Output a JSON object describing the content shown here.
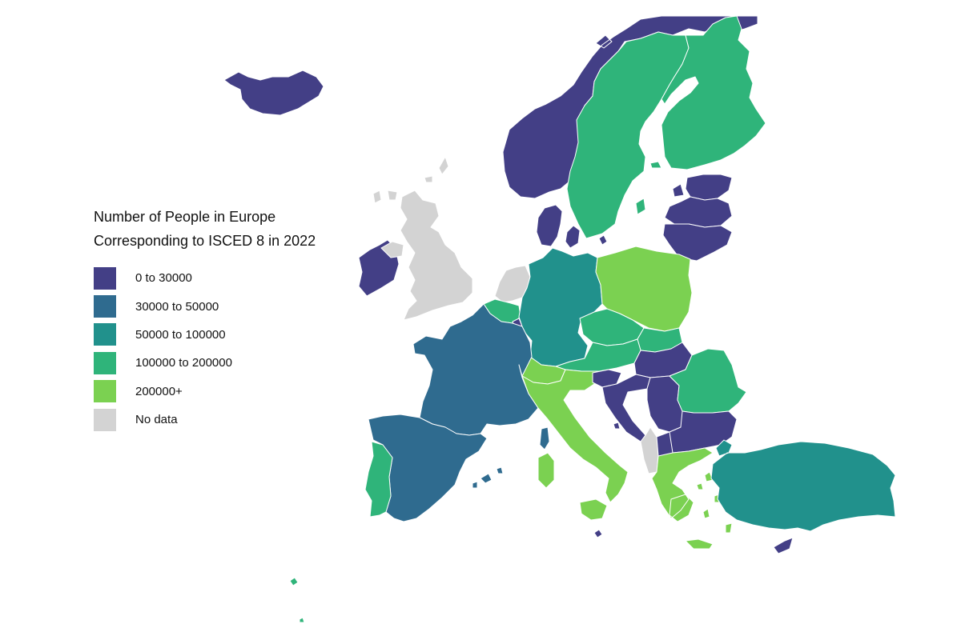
{
  "legend": {
    "title_line1": "Number of People in Europe",
    "title_line2": "Corresponding to ISCED 8 in 2022",
    "items": [
      {
        "label": "0 to 30000",
        "color": "#433f86"
      },
      {
        "label": "30000 to 50000",
        "color": "#2f6b8f"
      },
      {
        "label": "50000 to 100000",
        "color": "#21918c"
      },
      {
        "label": "100000 to 200000",
        "color": "#2fb47a"
      },
      {
        "label": "200000+",
        "color": "#7bd151"
      },
      {
        "label": "No data",
        "color": "#d3d3d3"
      }
    ]
  },
  "countries": [
    {
      "name": "Iceland",
      "category": 0
    },
    {
      "name": "Ireland",
      "category": 0
    },
    {
      "name": "United Kingdom",
      "category": 5
    },
    {
      "name": "Norway",
      "category": 0
    },
    {
      "name": "Sweden",
      "category": 3
    },
    {
      "name": "Finland",
      "category": 3
    },
    {
      "name": "Estonia",
      "category": 0
    },
    {
      "name": "Latvia",
      "category": 0
    },
    {
      "name": "Lithuania",
      "category": 0
    },
    {
      "name": "Denmark",
      "category": 0
    },
    {
      "name": "Netherlands",
      "category": 5
    },
    {
      "name": "Belgium",
      "category": 3
    },
    {
      "name": "Luxembourg",
      "category": 0
    },
    {
      "name": "Germany",
      "category": 2
    },
    {
      "name": "Poland",
      "category": 4
    },
    {
      "name": "Czechia",
      "category": 3
    },
    {
      "name": "Slovakia",
      "category": 3
    },
    {
      "name": "Austria",
      "category": 3
    },
    {
      "name": "Switzerland",
      "category": 4
    },
    {
      "name": "Hungary",
      "category": 0
    },
    {
      "name": "France",
      "category": 1
    },
    {
      "name": "Spain",
      "category": 1
    },
    {
      "name": "Portugal",
      "category": 3
    },
    {
      "name": "Italy",
      "category": 4
    },
    {
      "name": "Slovenia",
      "category": 0
    },
    {
      "name": "Croatia",
      "category": 0
    },
    {
      "name": "Serbia",
      "category": 0
    },
    {
      "name": "Romania",
      "category": 3
    },
    {
      "name": "Bulgaria",
      "category": 0
    },
    {
      "name": "Albania",
      "category": 5
    },
    {
      "name": "North Macedonia",
      "category": 0
    },
    {
      "name": "Greece",
      "category": 4
    },
    {
      "name": "Turkey",
      "category": 2
    },
    {
      "name": "Cyprus",
      "category": 0
    },
    {
      "name": "Malta",
      "category": 0
    }
  ]
}
